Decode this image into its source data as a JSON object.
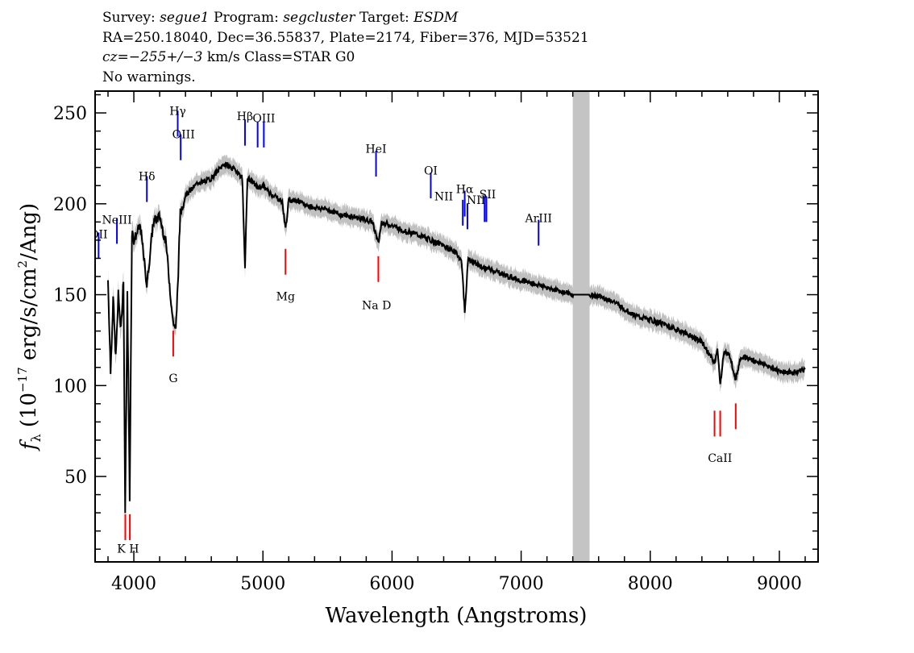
{
  "header": {
    "survey_label": "Survey:",
    "survey": "segue1",
    "program_label": "Program:",
    "program": "segcluster",
    "target_label": "Target:",
    "target": "ESDM",
    "line2": "RA=250.18040, Dec=36.55837, Plate=2174, Fiber=376, MJD=53521",
    "cz_label": "cz=",
    "cz_value": "−255+/−3",
    "cz_rest": " km/s Class=STAR G0",
    "line4": "No warnings."
  },
  "chart_data": {
    "type": "line",
    "title": "",
    "xlabel": "Wavelength (Angstroms)",
    "ylabel": "fλ (10⁻¹⁷ erg/s/cm²/Ang)",
    "ylabel_parts": {
      "f": "f",
      "lambda": "λ",
      "open": " (10",
      "exp1": "−17",
      "mid": " erg/s/cm",
      "exp2": "2",
      "close": "/Ang)"
    },
    "xlim": [
      3700,
      9300
    ],
    "ylim": [
      3,
      262
    ],
    "xticks": [
      4000,
      5000,
      6000,
      7000,
      8000,
      9000
    ],
    "yticks": [
      50,
      100,
      150,
      200,
      250
    ],
    "grid": false,
    "masked_region": [
      7400,
      7530
    ],
    "colors": {
      "spectrum": "#000000",
      "error": "#c0c0c0",
      "emission": "#0000ff",
      "absorption": "#ff0000",
      "mask": "#c4c4c4"
    },
    "spectrum": {
      "x": [
        3800,
        3820,
        3840,
        3860,
        3880,
        3900,
        3920,
        3933,
        3950,
        3968,
        3985,
        4000,
        4050,
        4101,
        4150,
        4200,
        4250,
        4300,
        4325,
        4340,
        4360,
        4400,
        4450,
        4500,
        4550,
        4600,
        4650,
        4700,
        4750,
        4800,
        4840,
        4861,
        4880,
        4920,
        4960,
        5000,
        5050,
        5100,
        5150,
        5175,
        5200,
        5270,
        5300,
        5400,
        5500,
        5600,
        5700,
        5800,
        5850,
        5893,
        5920,
        6000,
        6100,
        6200,
        6300,
        6400,
        6500,
        6540,
        6563,
        6590,
        6650,
        6700,
        6800,
        6900,
        7000,
        7100,
        7200,
        7300,
        7400,
        7530,
        7600,
        7700,
        7800,
        7900,
        8000,
        8100,
        8200,
        8300,
        8400,
        8498,
        8520,
        8542,
        8570,
        8620,
        8662,
        8700,
        8800,
        8900,
        9000,
        9100,
        9200
      ],
      "y": [
        158,
        108,
        148,
        115,
        150,
        130,
        160,
        30,
        150,
        38,
        185,
        180,
        188,
        155,
        190,
        193,
        178,
        137,
        130,
        155,
        195,
        205,
        208,
        212,
        212,
        214,
        218,
        222,
        220,
        218,
        214,
        166,
        214,
        212,
        209,
        210,
        206,
        204,
        201,
        186,
        202,
        202,
        200,
        198,
        197,
        194,
        193,
        191,
        190,
        178,
        190,
        188,
        185,
        183,
        180,
        177,
        173,
        168,
        140,
        170,
        167,
        165,
        163,
        160,
        158,
        156,
        154,
        152,
        150,
        150,
        149,
        147,
        142,
        138,
        136,
        134,
        131,
        128,
        124,
        112,
        121,
        100,
        119,
        116,
        103,
        116,
        114,
        111,
        108,
        107,
        109
      ]
    },
    "emission_lines": [
      {
        "label": "OII",
        "x": 3727,
        "y": 170
      },
      {
        "label": "NeIII",
        "x": 3869,
        "y": 178
      },
      {
        "label": "Hδ",
        "x": 4101,
        "y": 201
      },
      {
        "label": "Hγ",
        "x": 4340,
        "y": 237
      },
      {
        "label": "OIII",
        "x": 4363,
        "y": 224
      },
      {
        "label": "Hβ",
        "x": 4861,
        "y": 232
      },
      {
        "label": "OIII",
        "x": 4959,
        "y": 231
      },
      {
        "label": "OIII",
        "x": 5007,
        "y": 231
      },
      {
        "label": "HeI",
        "x": 5876,
        "y": 215
      },
      {
        "label": "OI",
        "x": 6300,
        "y": 203
      },
      {
        "label": "NII",
        "x": 6548,
        "y": 188
      },
      {
        "label": "Hα",
        "x": 6563,
        "y": 193
      },
      {
        "label": "NII",
        "x": 6584,
        "y": 186
      },
      {
        "label": "SII",
        "x": 6717,
        "y": 190
      },
      {
        "label": "SII",
        "x": 6731,
        "y": 190
      },
      {
        "label": "ArIII",
        "x": 7135,
        "y": 177
      }
    ],
    "emission_labels": [
      {
        "text": "OII",
        "x": 3727,
        "y": 181
      },
      {
        "text": "NeIII",
        "x": 3869,
        "y": 189
      },
      {
        "text": "Hδ",
        "x": 4101,
        "y": 213
      },
      {
        "text": "Hγ",
        "x": 4340,
        "y": 249
      },
      {
        "text": "OIII",
        "x": 4385,
        "y": 236
      },
      {
        "text": "Hβ",
        "x": 4861,
        "y": 246
      },
      {
        "text": "OIII",
        "x": 5007,
        "y": 245
      },
      {
        "text": "HeI",
        "x": 5876,
        "y": 228
      },
      {
        "text": "OI",
        "x": 6300,
        "y": 216
      },
      {
        "text": "NII",
        "x": 6400,
        "y": 202
      },
      {
        "text": "Hα",
        "x": 6563,
        "y": 206
      },
      {
        "text": "NII",
        "x": 6650,
        "y": 200
      },
      {
        "text": "SII",
        "x": 6740,
        "y": 203
      },
      {
        "text": "ArIII",
        "x": 7135,
        "y": 190
      }
    ],
    "absorption_lines": [
      {
        "label": "K",
        "x": 3934,
        "y": 15
      },
      {
        "label": "H",
        "x": 3969,
        "y": 15
      },
      {
        "label": "G",
        "x": 4305,
        "y": 116
      },
      {
        "label": "Mg",
        "x": 5175,
        "y": 161
      },
      {
        "label": "Na D",
        "x": 5894,
        "y": 157
      },
      {
        "label": "CaII",
        "x": 8498,
        "y": 72
      },
      {
        "label": "CaII",
        "x": 8542,
        "y": 72
      },
      {
        "label": "CaII",
        "x": 8662,
        "y": 76
      }
    ],
    "absorption_labels": [
      {
        "text": "K H",
        "x": 3955,
        "y": 8
      },
      {
        "text": "G",
        "x": 4305,
        "y": 102
      },
      {
        "text": "Mg",
        "x": 5175,
        "y": 147
      },
      {
        "text": "Na D",
        "x": 5880,
        "y": 142
      },
      {
        "text": "CaII",
        "x": 8540,
        "y": 58
      }
    ]
  }
}
